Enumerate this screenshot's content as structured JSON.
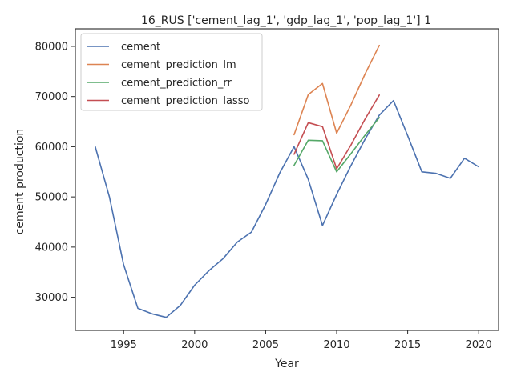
{
  "chart_data": {
    "type": "line",
    "title": "16_RUS ['cement_lag_1', 'gdp_lag_1', 'pop_lag_1'] 1",
    "xlabel": "Year",
    "ylabel": "cement production",
    "xlim": [
      1991.6,
      2021.4
    ],
    "ylim": [
      23400,
      83500
    ],
    "xticks": [
      1995,
      2000,
      2005,
      2010,
      2015,
      2020
    ],
    "yticks": [
      30000,
      40000,
      50000,
      60000,
      70000,
      80000
    ],
    "grid": false,
    "legend_position": "top-left",
    "series": [
      {
        "name": "cement",
        "color": "#4c72b0",
        "x": [
          1993,
          1994,
          1995,
          1996,
          1997,
          1998,
          1999,
          2000,
          2001,
          2002,
          2003,
          2004,
          2005,
          2006,
          2007,
          2008,
          2009,
          2010,
          2011,
          2012,
          2013,
          2014,
          2015,
          2016,
          2017,
          2018,
          2019,
          2020
        ],
        "y": [
          60000,
          50000,
          36500,
          27800,
          26700,
          26000,
          28400,
          32400,
          35300,
          37700,
          41000,
          43000,
          48500,
          54800,
          60000,
          53500,
          44300,
          50500,
          56200,
          61500,
          66300,
          69200,
          62200,
          55000,
          54700,
          53700,
          57700,
          56000
        ]
      },
      {
        "name": "cement_prediction_lm",
        "color": "#dd8452",
        "x": [
          2007,
          2008,
          2009,
          2010,
          2011,
          2012,
          2013
        ],
        "y": [
          62400,
          70400,
          72600,
          62700,
          68300,
          74500,
          80200
        ]
      },
      {
        "name": "cement_prediction_rr",
        "color": "#55a868",
        "x": [
          2007,
          2008,
          2009,
          2010,
          2011,
          2012,
          2013
        ],
        "y": [
          56300,
          61300,
          61200,
          55000,
          58600,
          62300,
          65800
        ]
      },
      {
        "name": "cement_prediction_lasso",
        "color": "#c44e52",
        "x": [
          2007,
          2008,
          2009,
          2010,
          2011,
          2012,
          2013
        ],
        "y": [
          58500,
          64800,
          64000,
          55600,
          60300,
          65500,
          70300
        ]
      }
    ]
  }
}
